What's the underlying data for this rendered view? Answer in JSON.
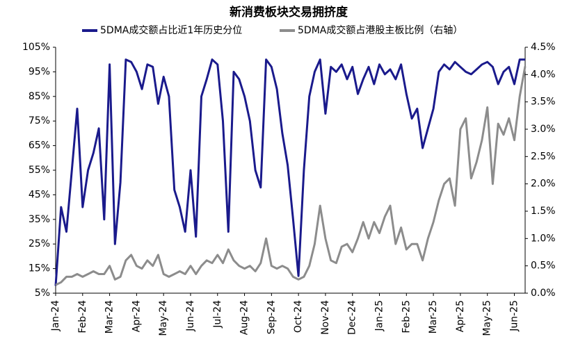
{
  "chart_data": {
    "type": "line",
    "title": "新消费板块交易拥挤度",
    "categories": [
      "Jan-24",
      null,
      null,
      null,
      null,
      "Feb-24",
      null,
      null,
      null,
      null,
      "Mar-24",
      null,
      null,
      null,
      null,
      "Apr-24",
      null,
      null,
      null,
      null,
      "May-24",
      null,
      null,
      null,
      null,
      "Jun-24",
      null,
      null,
      null,
      null,
      "Jul-24",
      null,
      null,
      null,
      null,
      "Aug-24",
      null,
      null,
      null,
      null,
      "Sep-24",
      null,
      null,
      null,
      null,
      "Oct-24",
      null,
      null,
      null,
      null,
      "Nov-24",
      null,
      null,
      null,
      null,
      "Dec-24",
      null,
      null,
      null,
      null,
      "Jan-25",
      null,
      null,
      null,
      null,
      "Feb-25",
      null,
      null,
      null,
      null,
      "Mar-25",
      null,
      null,
      null,
      null,
      "Apr-25",
      null,
      null,
      null,
      null,
      "May-25",
      null,
      null,
      null,
      null,
      "Jun-25",
      null,
      null
    ],
    "series": [
      {
        "name": "5DMA成交额占比近1年历史分位",
        "color": "#1a1a8c",
        "axis": "y",
        "values": [
          8,
          40,
          30,
          55,
          80,
          40,
          55,
          62,
          72,
          35,
          98,
          25,
          50,
          100,
          99,
          95,
          88,
          98,
          97,
          82,
          93,
          85,
          47,
          40,
          30,
          55,
          28,
          85,
          92,
          100,
          98,
          75,
          30,
          95,
          92,
          85,
          75,
          55,
          48,
          100,
          97,
          88,
          70,
          57,
          35,
          12,
          55,
          85,
          95,
          100,
          78,
          97,
          95,
          98,
          92,
          97,
          86,
          92,
          97,
          90,
          98,
          94,
          96,
          92,
          98,
          86,
          76,
          80,
          64,
          72,
          80,
          95,
          98,
          96,
          99,
          97,
          95,
          94,
          96,
          98,
          99,
          97,
          90,
          95,
          97,
          90,
          100,
          100
        ]
      },
      {
        "name": "5DMA成交额占港股主板比例（右轴）",
        "color": "#8c8c8c",
        "axis": "y2",
        "values": [
          0.15,
          0.2,
          0.3,
          0.3,
          0.35,
          0.3,
          0.35,
          0.4,
          0.35,
          0.35,
          0.5,
          0.25,
          0.3,
          0.6,
          0.7,
          0.5,
          0.45,
          0.6,
          0.5,
          0.7,
          0.35,
          0.3,
          0.35,
          0.4,
          0.35,
          0.5,
          0.35,
          0.5,
          0.6,
          0.55,
          0.7,
          0.55,
          0.8,
          0.6,
          0.5,
          0.45,
          0.5,
          0.4,
          0.55,
          1.0,
          0.5,
          0.45,
          0.5,
          0.45,
          0.3,
          0.25,
          0.3,
          0.5,
          0.9,
          1.6,
          1.0,
          0.6,
          0.55,
          0.85,
          0.9,
          0.75,
          1.0,
          1.3,
          1.0,
          1.3,
          1.1,
          1.4,
          1.6,
          0.9,
          1.2,
          0.8,
          0.9,
          0.9,
          0.6,
          1.0,
          1.3,
          1.7,
          2.0,
          2.1,
          1.6,
          3.0,
          3.2,
          2.1,
          2.4,
          2.8,
          3.4,
          2.0,
          3.1,
          2.9,
          3.2,
          2.8,
          3.6,
          4.15
        ]
      }
    ],
    "ylim": [
      5,
      105
    ],
    "yticks": [
      {
        "value": 5,
        "label": "5%"
      },
      {
        "value": 15,
        "label": "15%"
      },
      {
        "value": 25,
        "label": "25%"
      },
      {
        "value": 35,
        "label": "35%"
      },
      {
        "value": 45,
        "label": "45%"
      },
      {
        "value": 55,
        "label": "55%"
      },
      {
        "value": 65,
        "label": "65%"
      },
      {
        "value": 75,
        "label": "75%"
      },
      {
        "value": 85,
        "label": "85%"
      },
      {
        "value": 95,
        "label": "95%"
      },
      {
        "value": 105,
        "label": "105%"
      }
    ],
    "y2lim": [
      0,
      4.5
    ],
    "y2ticks": [
      {
        "value": 0,
        "label": "0.0%"
      },
      {
        "value": 0.5,
        "label": "0.5%"
      },
      {
        "value": 1,
        "label": "1.0%"
      },
      {
        "value": 1.5,
        "label": "1.5%"
      },
      {
        "value": 2,
        "label": "2.0%"
      },
      {
        "value": 2.5,
        "label": "2.5%"
      },
      {
        "value": 3,
        "label": "3.0%"
      },
      {
        "value": 3.5,
        "label": "3.5%"
      },
      {
        "value": 4,
        "label": "4.0%"
      },
      {
        "value": 4.5,
        "label": "4.5%"
      }
    ],
    "grid": false
  }
}
